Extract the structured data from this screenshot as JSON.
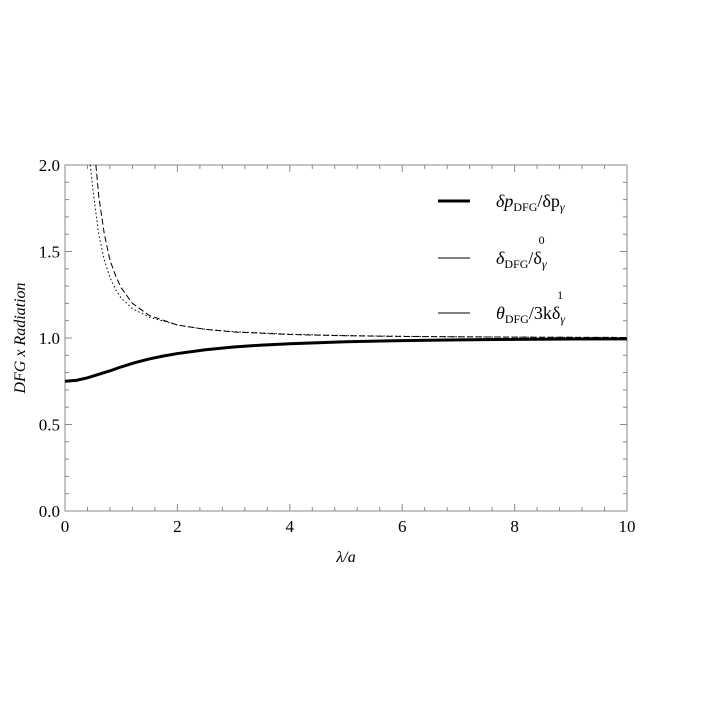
{
  "chart_data": {
    "type": "line",
    "xlabel": "λ/a",
    "ylabel": "DFG x Radiation",
    "xlim": [
      0,
      10
    ],
    "ylim": [
      0,
      2
    ],
    "x_ticks": [
      "0",
      "2",
      "4",
      "6",
      "8",
      "10"
    ],
    "y_ticks": [
      "0.0",
      "0.5",
      "1.0",
      "1.5",
      "2.0"
    ],
    "grid": false,
    "legend_position": "top-right",
    "series": [
      {
        "name": "δp_DFG/δp_γ",
        "style": "thick-solid",
        "x": [
          0,
          0.2,
          0.4,
          0.6,
          0.8,
          1.0,
          1.25,
          1.5,
          1.75,
          2.0,
          2.5,
          3.0,
          3.5,
          4.0,
          5.0,
          6.0,
          7.0,
          8.0,
          9.0,
          10.0
        ],
        "y": [
          0.75,
          0.755,
          0.77,
          0.79,
          0.81,
          0.833,
          0.858,
          0.879,
          0.896,
          0.91,
          0.932,
          0.948,
          0.959,
          0.967,
          0.978,
          0.985,
          0.989,
          0.992,
          0.994,
          0.995
        ]
      },
      {
        "name": "δ_DFG/δ_γ^0",
        "style": "dashed",
        "x": [
          0.55,
          0.6,
          0.7,
          0.8,
          0.9,
          1.0,
          1.2,
          1.5,
          2.0,
          2.5,
          3.0,
          4.0,
          5.0,
          6.0,
          7.0,
          8.0,
          9.0,
          10.0
        ],
        "y": [
          2.0,
          1.82,
          1.6,
          1.45,
          1.36,
          1.29,
          1.2,
          1.13,
          1.075,
          1.05,
          1.035,
          1.02,
          1.013,
          1.009,
          1.007,
          1.005,
          1.004,
          1.003
        ]
      },
      {
        "name": "θ_DFG/3kδ_γ^1",
        "style": "dotted",
        "x": [
          0.45,
          0.5,
          0.6,
          0.7,
          0.8,
          0.9,
          1.0,
          1.2,
          1.5,
          2.0,
          2.5,
          3.0,
          4.0,
          5.0,
          6.0,
          7.0,
          8.0,
          9.0,
          10.0
        ],
        "y": [
          2.0,
          1.85,
          1.6,
          1.45,
          1.35,
          1.28,
          1.23,
          1.17,
          1.12,
          1.075,
          1.05,
          1.037,
          1.022,
          1.014,
          1.01,
          1.007,
          1.005,
          1.004,
          1.003
        ]
      }
    ],
    "legend": [
      {
        "text": "δp",
        "sub": "DFG",
        "text2": "/δp",
        "sub2": "γ",
        "sup2": ""
      },
      {
        "text": "δ",
        "sub": "DFG",
        "text2": "/δ",
        "sub2": "γ",
        "sup2": "0"
      },
      {
        "text": "θ",
        "sub": "DFG",
        "text2": "/3kδ",
        "sub2": "γ",
        "sup2": "1"
      }
    ]
  }
}
